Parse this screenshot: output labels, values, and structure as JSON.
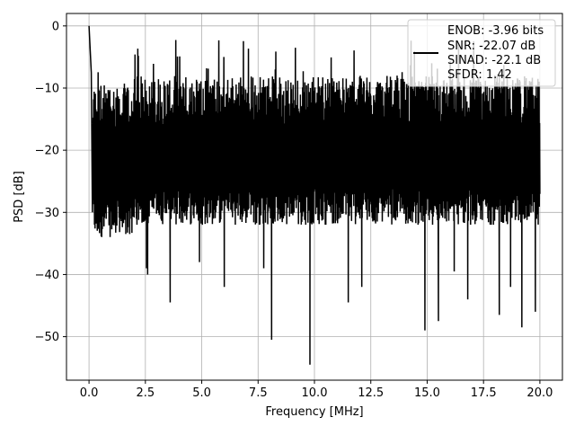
{
  "chart_data": {
    "type": "line",
    "xlabel": "Frequency [MHz]",
    "ylabel": "PSD [dB]",
    "xlim": [
      -1.0,
      21.0
    ],
    "ylim": [
      -57.0,
      2.0
    ],
    "grid": true,
    "legend_position": "top-right",
    "x_ticks": [
      {
        "value": 0.0,
        "label": "0.0"
      },
      {
        "value": 2.5,
        "label": "2.5"
      },
      {
        "value": 5.0,
        "label": "5.0"
      },
      {
        "value": 7.5,
        "label": "7.5"
      },
      {
        "value": 10.0,
        "label": "10.0"
      },
      {
        "value": 12.5,
        "label": "12.5"
      },
      {
        "value": 15.0,
        "label": "15.0"
      },
      {
        "value": 17.5,
        "label": "17.5"
      },
      {
        "value": 20.0,
        "label": "20.0"
      }
    ],
    "y_ticks": [
      {
        "value": 0,
        "label": "0"
      },
      {
        "value": -10,
        "label": "−10"
      },
      {
        "value": -20,
        "label": "−20"
      },
      {
        "value": -30,
        "label": "−30"
      },
      {
        "value": -40,
        "label": "−40"
      },
      {
        "value": -50,
        "label": "−50"
      }
    ],
    "legend": {
      "lines": [
        "ENOB: -3.96 bits",
        "SNR: -22.07 dB",
        "SINAD: -22.1 dB",
        "SFDR: 1.42"
      ],
      "line_color": "#000000"
    },
    "series": [
      {
        "color": "#000000",
        "x_range": [
          0.0,
          20.0
        ],
        "noise_floor_db": -20,
        "typical_upper_db": -12,
        "typical_lower_db": -30,
        "peaks": [
          {
            "x": 0.0,
            "y": 0.0
          },
          {
            "x": 0.1,
            "y": -7.5
          },
          {
            "x": 0.15,
            "y": -30.0
          }
        ],
        "notable_dips": [
          {
            "x": 2.55,
            "y": -39.0
          },
          {
            "x": 2.6,
            "y": -40.0
          },
          {
            "x": 3.6,
            "y": -44.5
          },
          {
            "x": 4.9,
            "y": -38.0
          },
          {
            "x": 6.0,
            "y": -42.0
          },
          {
            "x": 7.75,
            "y": -39.0
          },
          {
            "x": 8.1,
            "y": -50.5
          },
          {
            "x": 9.8,
            "y": -54.5
          },
          {
            "x": 11.5,
            "y": -44.5
          },
          {
            "x": 12.1,
            "y": -42.0
          },
          {
            "x": 14.9,
            "y": -49.0
          },
          {
            "x": 15.5,
            "y": -47.5
          },
          {
            "x": 16.2,
            "y": -39.5
          },
          {
            "x": 16.8,
            "y": -44.0
          },
          {
            "x": 18.2,
            "y": -46.5
          },
          {
            "x": 18.7,
            "y": -42.0
          },
          {
            "x": 19.2,
            "y": -48.5
          },
          {
            "x": 19.8,
            "y": -46.0
          }
        ]
      }
    ]
  }
}
